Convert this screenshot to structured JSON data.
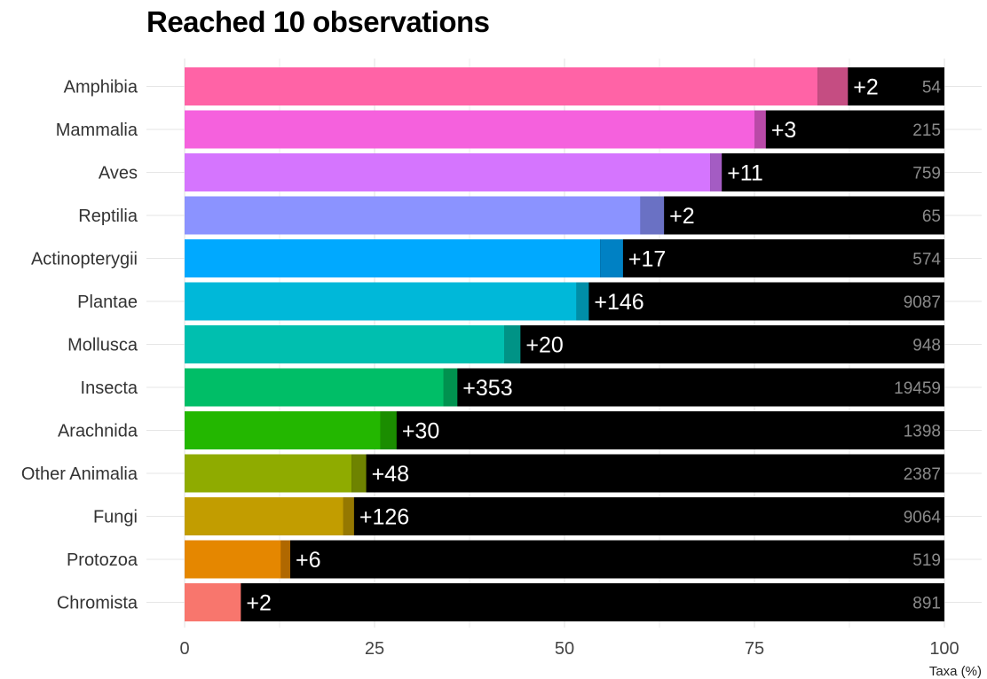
{
  "chart_data": {
    "type": "bar",
    "orientation": "horizontal",
    "stacked": true,
    "title": "Reached 10 observations",
    "xlabel": "Taxa (%)",
    "ylabel": "",
    "xlim": [
      0,
      100
    ],
    "xticks": [
      0,
      25,
      50,
      75,
      100
    ],
    "grid": true,
    "legend": "none",
    "categories": [
      "Amphibia",
      "Mammalia",
      "Aves",
      "Reptilia",
      "Actinopterygii",
      "Plantae",
      "Mollusca",
      "Insecta",
      "Arachnida",
      "Other Animalia",
      "Fungi",
      "Protozoa",
      "Chromista"
    ],
    "base_values": [
      83.3,
      75.0,
      69.2,
      60.0,
      54.7,
      51.6,
      42.1,
      34.1,
      25.8,
      22.0,
      20.9,
      12.7,
      7.4
    ],
    "recent_values": [
      4.0,
      1.5,
      1.5,
      3.1,
      3.0,
      1.6,
      2.1,
      1.8,
      2.1,
      1.9,
      1.4,
      1.2,
      0.0
    ],
    "gain_labels": [
      "+2",
      "+3",
      "+11",
      "+2",
      "+17",
      "+146",
      "+20",
      "+353",
      "+30",
      "+48",
      "+126",
      "+6",
      "+2"
    ],
    "totals": [
      54,
      215,
      759,
      65,
      574,
      9087,
      948,
      19459,
      1398,
      2387,
      9064,
      519,
      891
    ],
    "colors": [
      "#ff63a6",
      "#f561dd",
      "#d575fe",
      "#8b93ff",
      "#00a9ff",
      "#00b8d9",
      "#00bfaf",
      "#00be67",
      "#23b700",
      "#8fab00",
      "#c29d00",
      "#e58700",
      "#f8766d"
    ],
    "recent_colors": [
      "#c54d82",
      "#b94aa8",
      "#a45cc3",
      "#6a71c4",
      "#0081c4",
      "#008ea7",
      "#009386",
      "#00924f",
      "#1b8d00",
      "#6e8300",
      "#957800",
      "#b06800",
      "#c05b54"
    ],
    "remainder_color": "#000000"
  }
}
